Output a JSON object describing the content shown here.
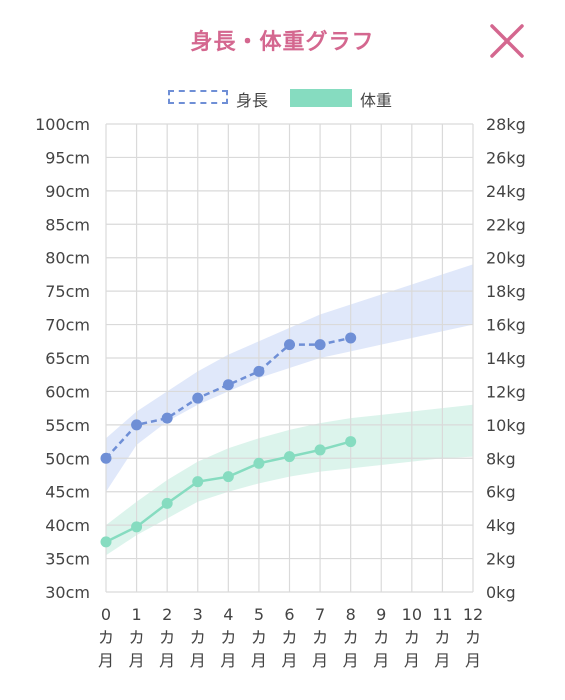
{
  "header": {
    "title": "身長・体重グラフ"
  },
  "legend": {
    "height_label": "身長",
    "weight_label": "体重"
  },
  "colors": {
    "title": "#d4678f",
    "close": "#d4678f",
    "height_line": "#6f8fd6",
    "height_band": "#dde5fa",
    "weight_line": "#86dcc0",
    "weight_band": "#d8f3ea"
  },
  "chart_data": {
    "type": "line",
    "x": [
      0,
      1,
      2,
      3,
      4,
      5,
      6,
      7,
      8,
      9,
      10,
      11,
      12
    ],
    "x_tick_labels": [
      {
        "num": "0",
        "unit1": "カ",
        "unit2": "月"
      },
      {
        "num": "1",
        "unit1": "カ",
        "unit2": "月"
      },
      {
        "num": "2",
        "unit1": "カ",
        "unit2": "月"
      },
      {
        "num": "3",
        "unit1": "カ",
        "unit2": "月"
      },
      {
        "num": "4",
        "unit1": "カ",
        "unit2": "月"
      },
      {
        "num": "5",
        "unit1": "カ",
        "unit2": "月"
      },
      {
        "num": "6",
        "unit1": "カ",
        "unit2": "月"
      },
      {
        "num": "7",
        "unit1": "カ",
        "unit2": "月"
      },
      {
        "num": "8",
        "unit1": "カ",
        "unit2": "月"
      },
      {
        "num": "9",
        "unit1": "カ",
        "unit2": "月"
      },
      {
        "num": "10",
        "unit1": "カ",
        "unit2": "月"
      },
      {
        "num": "11",
        "unit1": "カ",
        "unit2": "月"
      },
      {
        "num": "12",
        "unit1": "カ",
        "unit2": "月"
      }
    ],
    "y_left": {
      "range": [
        30,
        100
      ],
      "ticks": [
        "30cm",
        "35cm",
        "40cm",
        "45cm",
        "50cm",
        "55cm",
        "60cm",
        "65cm",
        "70cm",
        "75cm",
        "80cm",
        "85cm",
        "90cm",
        "95cm",
        "100cm"
      ]
    },
    "y_right": {
      "range": [
        0,
        28
      ],
      "ticks": [
        "0kg",
        "2kg",
        "4kg",
        "6kg",
        "8kg",
        "10kg",
        "12kg",
        "14kg",
        "16kg",
        "18kg",
        "20kg",
        "22kg",
        "24kg",
        "26kg",
        "28kg"
      ]
    },
    "grid": true,
    "series": [
      {
        "name": "身長",
        "axis": "left",
        "style": "dashed",
        "x": [
          0,
          1,
          2,
          3,
          4,
          5,
          6,
          7,
          8
        ],
        "values": [
          50,
          55,
          56,
          59,
          61,
          63,
          67,
          67,
          68
        ]
      },
      {
        "name": "体重",
        "axis": "right",
        "style": "solid",
        "x": [
          0,
          1,
          2,
          3,
          4,
          5,
          6,
          7,
          8
        ],
        "values": [
          3.0,
          3.9,
          5.3,
          6.6,
          6.9,
          7.7,
          8.1,
          8.5,
          9.0
        ]
      }
    ],
    "bands": [
      {
        "axis": "left",
        "x": [
          0,
          1,
          2,
          3,
          4,
          5,
          6,
          7,
          8,
          9,
          10,
          11,
          12
        ],
        "low": [
          45,
          52,
          55.5,
          58,
          60,
          62,
          63.5,
          65,
          66,
          67,
          68,
          69,
          70
        ],
        "high": [
          53,
          57,
          60,
          63,
          65.5,
          67.5,
          69.5,
          71.5,
          73,
          74.5,
          76,
          77.5,
          79
        ]
      },
      {
        "axis": "right",
        "x": [
          0,
          1,
          2,
          3,
          4,
          5,
          6,
          7,
          8,
          9,
          10,
          11,
          12
        ],
        "low": [
          2.2,
          3.4,
          4.4,
          5.4,
          6.0,
          6.5,
          6.9,
          7.2,
          7.4,
          7.6,
          7.8,
          8.0,
          8.1
        ],
        "high": [
          4.0,
          5.4,
          6.7,
          7.8,
          8.6,
          9.2,
          9.7,
          10.1,
          10.4,
          10.6,
          10.8,
          11.0,
          11.2
        ]
      }
    ]
  }
}
